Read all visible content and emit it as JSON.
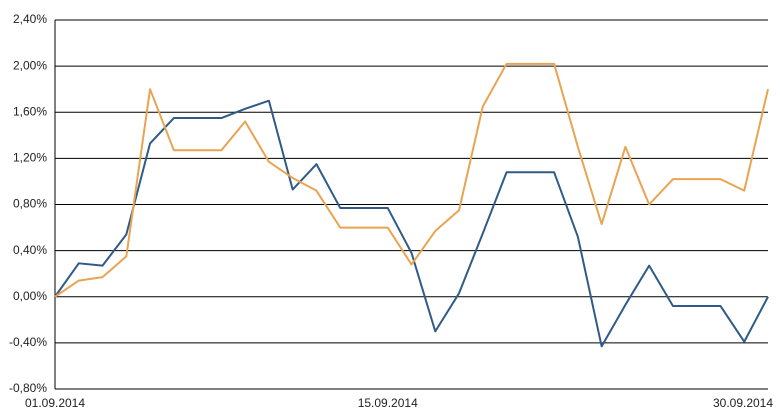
{
  "chart_data": {
    "type": "line",
    "categories": [
      "01.09.2014",
      null,
      null,
      null,
      null,
      null,
      null,
      null,
      null,
      null,
      null,
      null,
      null,
      null,
      "15.09.2014",
      null,
      null,
      null,
      null,
      null,
      null,
      null,
      null,
      null,
      null,
      null,
      null,
      null,
      null,
      "30.09.2014",
      null
    ],
    "series": [
      {
        "color": "#2f5b86",
        "values": [
          0.0,
          0.29,
          0.27,
          0.54,
          1.33,
          1.55,
          1.55,
          1.55,
          1.63,
          1.7,
          0.93,
          1.15,
          0.77,
          0.77,
          0.77,
          0.38,
          -0.3,
          0.03,
          0.55,
          1.08,
          1.08,
          1.08,
          0.52,
          -0.43,
          -0.07,
          0.27,
          -0.08,
          -0.08,
          -0.08,
          -0.39,
          0.0
        ]
      },
      {
        "color": "#e8a452",
        "values": [
          0.0,
          0.14,
          0.17,
          0.35,
          1.8,
          1.27,
          1.27,
          1.27,
          1.52,
          1.17,
          1.03,
          0.92,
          0.6,
          0.6,
          0.6,
          0.28,
          0.57,
          0.75,
          1.65,
          2.02,
          2.02,
          2.02,
          1.3,
          0.63,
          1.3,
          0.8,
          1.02,
          1.02,
          1.02,
          0.92,
          1.8
        ]
      }
    ],
    "ylim": [
      -0.8,
      2.4
    ],
    "yticks": [
      {
        "value": -0.8,
        "label": "-0,80%"
      },
      {
        "value": -0.4,
        "label": "-0,40%"
      },
      {
        "value": 0,
        "label": "0,00%"
      },
      {
        "value": 0.4,
        "label": "0,40%"
      },
      {
        "value": 0.8,
        "label": "0,80%"
      },
      {
        "value": 1.2,
        "label": "1,20%"
      },
      {
        "value": 1.6,
        "label": "1,60%"
      },
      {
        "value": 2.0,
        "label": "2,00%"
      },
      {
        "value": 2.4,
        "label": "2,40%"
      }
    ],
    "grid": true
  }
}
